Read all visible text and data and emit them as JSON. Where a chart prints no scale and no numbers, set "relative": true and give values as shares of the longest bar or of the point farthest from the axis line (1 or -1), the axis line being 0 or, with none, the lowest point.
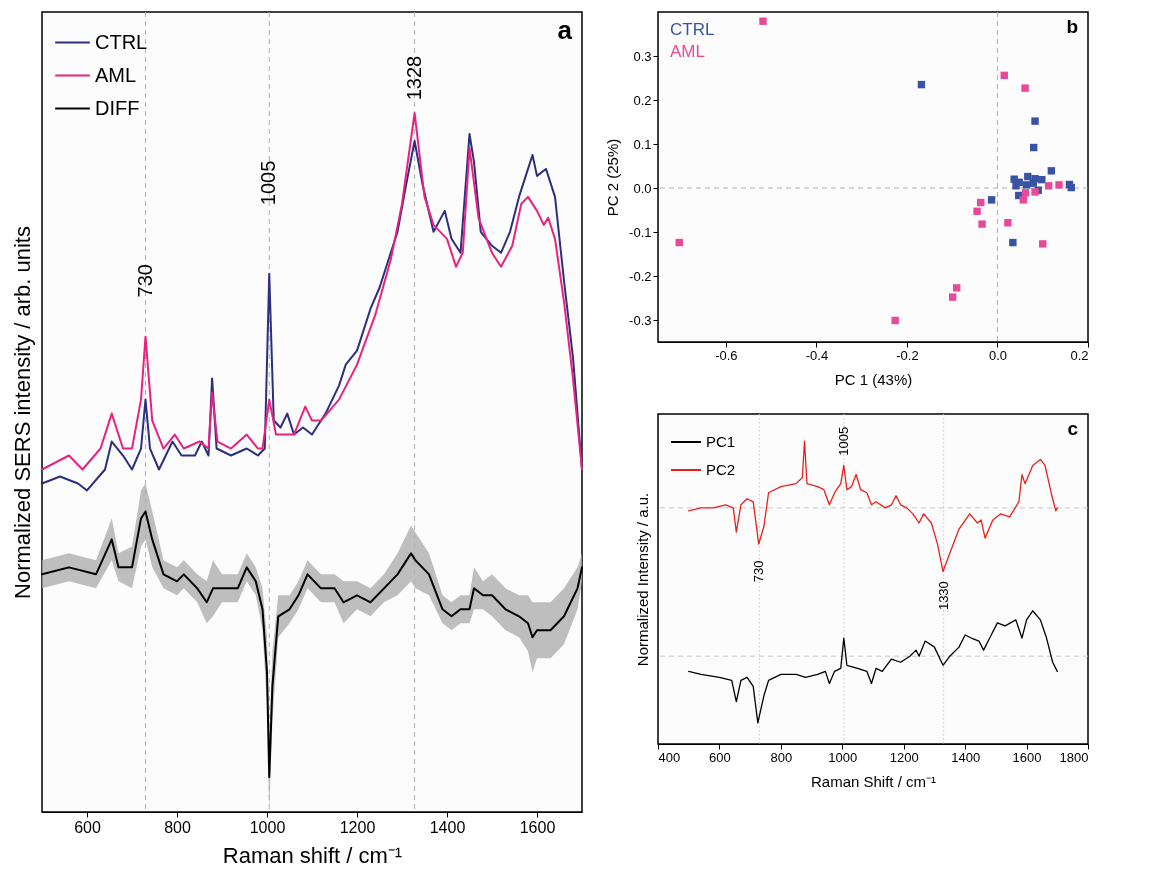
{
  "chart_data": [
    {
      "type": "line",
      "relative": true,
      "xlabel": "Raman shift / cm⁻¹",
      "ylabel": "Normalized SERS intensity / arb. units",
      "xlim": [
        500,
        1700
      ],
      "xticks": [
        600,
        800,
        1000,
        1200,
        1400,
        1600
      ],
      "legend": "top left",
      "series": [
        {
          "name": "CTRL",
          "color": "#2b2f7e",
          "x": [
            500,
            540,
            580,
            600,
            640,
            655,
            680,
            700,
            720,
            730,
            740,
            760,
            790,
            810,
            840,
            855,
            870,
            878,
            888,
            920,
            955,
            980,
            995,
            1005,
            1015,
            1030,
            1045,
            1060,
            1080,
            1100,
            1130,
            1160,
            1175,
            1200,
            1230,
            1250,
            1275,
            1290,
            1310,
            1328,
            1345,
            1370,
            1395,
            1410,
            1430,
            1450,
            1460,
            1475,
            1500,
            1520,
            1540,
            1560,
            1580,
            1590,
            1600,
            1620,
            1640,
            1660,
            1680,
            1700
          ],
          "values": [
            0.47,
            0.48,
            0.47,
            0.46,
            0.49,
            0.53,
            0.51,
            0.49,
            0.52,
            0.59,
            0.52,
            0.49,
            0.53,
            0.51,
            0.51,
            0.53,
            0.51,
            0.62,
            0.52,
            0.51,
            0.52,
            0.51,
            0.52,
            0.77,
            0.56,
            0.55,
            0.57,
            0.54,
            0.55,
            0.54,
            0.57,
            0.61,
            0.64,
            0.66,
            0.72,
            0.75,
            0.8,
            0.83,
            0.9,
            0.96,
            0.9,
            0.83,
            0.86,
            0.82,
            0.8,
            0.97,
            0.93,
            0.83,
            0.81,
            0.8,
            0.83,
            0.88,
            0.92,
            0.94,
            0.91,
            0.92,
            0.88,
            0.76,
            0.65,
            0.49
          ]
        },
        {
          "name": "AML",
          "color": "#e8237f",
          "x": [
            500,
            560,
            590,
            630,
            655,
            680,
            700,
            720,
            730,
            745,
            770,
            795,
            815,
            850,
            870,
            878,
            890,
            920,
            955,
            980,
            990,
            1005,
            1020,
            1045,
            1060,
            1085,
            1100,
            1120,
            1160,
            1200,
            1240,
            1275,
            1300,
            1328,
            1350,
            1370,
            1400,
            1420,
            1435,
            1450,
            1470,
            1500,
            1520,
            1545,
            1565,
            1580,
            1600,
            1615,
            1625,
            1640,
            1660,
            1680,
            1700
          ],
          "values": [
            0.49,
            0.51,
            0.49,
            0.52,
            0.57,
            0.52,
            0.52,
            0.59,
            0.68,
            0.56,
            0.52,
            0.54,
            0.52,
            0.53,
            0.52,
            0.6,
            0.53,
            0.52,
            0.54,
            0.52,
            0.52,
            0.59,
            0.54,
            0.54,
            0.54,
            0.58,
            0.56,
            0.56,
            0.59,
            0.64,
            0.71,
            0.79,
            0.87,
            1,
            0.88,
            0.84,
            0.82,
            0.78,
            0.8,
            0.95,
            0.85,
            0.8,
            0.78,
            0.81,
            0.87,
            0.88,
            0.86,
            0.84,
            0.85,
            0.82,
            0.73,
            0.62,
            0.49
          ]
        },
        {
          "name": "DIFF",
          "color": "#000000",
          "x": [
            500,
            560,
            620,
            655,
            670,
            700,
            720,
            730,
            745,
            770,
            800,
            815,
            845,
            866,
            880,
            900,
            935,
            955,
            975,
            990,
            1000,
            1005,
            1012,
            1025,
            1050,
            1070,
            1090,
            1120,
            1150,
            1170,
            1200,
            1230,
            1260,
            1290,
            1320,
            1330,
            1360,
            1390,
            1410,
            1430,
            1450,
            1460,
            1480,
            1500,
            1530,
            1560,
            1580,
            1590,
            1600,
            1630,
            1660,
            1690,
            1700
          ],
          "values": [
            0.34,
            0.35,
            0.34,
            0.39,
            0.35,
            0.35,
            0.42,
            0.43,
            0.39,
            0.34,
            0.33,
            0.34,
            0.32,
            0.3,
            0.32,
            0.32,
            0.32,
            0.35,
            0.33,
            0.29,
            0.2,
            0.05,
            0.18,
            0.28,
            0.29,
            0.31,
            0.34,
            0.32,
            0.32,
            0.3,
            0.31,
            0.3,
            0.32,
            0.34,
            0.37,
            0.36,
            0.34,
            0.29,
            0.28,
            0.29,
            0.29,
            0.32,
            0.31,
            0.31,
            0.29,
            0.28,
            0.27,
            0.25,
            0.26,
            0.26,
            0.28,
            0.32,
            0.35
          ],
          "lower": [
            0.32,
            0.33,
            0.32,
            0.36,
            0.33,
            0.32,
            0.38,
            0.39,
            0.35,
            0.32,
            0.31,
            0.32,
            0.3,
            0.27,
            0.28,
            0.3,
            0.3,
            0.33,
            0.31,
            0.26,
            0.15,
            0.0,
            0.13,
            0.25,
            0.27,
            0.29,
            0.32,
            0.3,
            0.3,
            0.27,
            0.29,
            0.28,
            0.3,
            0.31,
            0.33,
            0.32,
            0.31,
            0.27,
            0.26,
            0.27,
            0.27,
            0.29,
            0.29,
            0.28,
            0.26,
            0.25,
            0.23,
            0.2,
            0.22,
            0.22,
            0.24,
            0.29,
            0.33
          ],
          "upper": [
            0.36,
            0.37,
            0.36,
            0.42,
            0.37,
            0.38,
            0.46,
            0.47,
            0.43,
            0.36,
            0.35,
            0.36,
            0.34,
            0.33,
            0.36,
            0.34,
            0.34,
            0.37,
            0.35,
            0.32,
            0.25,
            0.11,
            0.23,
            0.31,
            0.31,
            0.33,
            0.36,
            0.34,
            0.34,
            0.33,
            0.33,
            0.32,
            0.34,
            0.37,
            0.41,
            0.4,
            0.37,
            0.31,
            0.3,
            0.31,
            0.31,
            0.35,
            0.33,
            0.34,
            0.32,
            0.31,
            0.31,
            0.3,
            0.3,
            0.3,
            0.32,
            0.35,
            0.37
          ]
        }
      ],
      "ref_lines": [
        {
          "axis": "x",
          "value": 730,
          "color": "#b0b0b0",
          "line_style": "dashed"
        },
        {
          "axis": "x",
          "value": 1005,
          "color": "#b0b0b0",
          "line_style": "dashed"
        },
        {
          "axis": "x",
          "value": 1328,
          "color": "#b0b0b0",
          "line_style": "dashed"
        }
      ],
      "annotations": [
        {
          "text": "730",
          "x": 730,
          "y": 0.76
        },
        {
          "text": "1005",
          "x": 1005,
          "y": 0.9
        },
        {
          "text": "1328",
          "x": 1328,
          "y": 1.05
        },
        "a"
      ]
    },
    {
      "type": "scatter",
      "xlabel": "PC 1 (43%)",
      "ylabel": "PC 2 (25%)",
      "xlim": [
        -0.75,
        0.2
      ],
      "xticks": [
        -0.6,
        -0.4,
        -0.2,
        {
          "value": 0,
          "label": "0.0"
        },
        0.2
      ],
      "ylim": [
        -0.35,
        0.4
      ],
      "yticks": [
        -0.3,
        -0.2,
        -0.1,
        {
          "value": 0,
          "label": "0.0"
        },
        0.1,
        0.2,
        0.3
      ],
      "legend": "top left",
      "marker": "square",
      "series": [
        {
          "name": "CTRL",
          "color": "#3953a4",
          "x": [
            -0.168,
            0.083,
            0.08,
            0.119,
            0.037,
            0.067,
            0.048,
            0.064,
            0.083,
            0.098,
            0.079,
            0.047,
            0.09,
            -0.013,
            0.034,
            0.159,
            0.163,
            0.041
          ],
          "values": [
            0.235,
            0.152,
            0.092,
            0.039,
            0.02,
            0.026,
            0.013,
            0.007,
            0.021,
            0.019,
            0.011,
            -0.017,
            -0.005,
            -0.027,
            -0.124,
            0.008,
            0.001,
            0.005
          ]
        },
        {
          "name": "AML",
          "color": "#e84a9a",
          "x": [
            -0.518,
            -0.703,
            0.015,
            0.061,
            -0.037,
            -0.045,
            -0.034,
            0.023,
            0.057,
            0.062,
            0.083,
            0.113,
            0.136,
            0.1,
            -0.09,
            -0.099,
            -0.226
          ],
          "values": [
            0.379,
            -0.124,
            0.256,
            0.227,
            -0.033,
            -0.053,
            -0.082,
            -0.079,
            -0.027,
            -0.011,
            -0.009,
            0.005,
            0.007,
            -0.127,
            -0.227,
            -0.248,
            -0.301
          ]
        }
      ],
      "ref_lines": [
        {
          "axis": "x",
          "value": 0,
          "color": "#b0b0b0",
          "line_style": "dashed"
        },
        {
          "axis": "y",
          "value": 0,
          "color": "#b0b0b0",
          "line_style": "dashed"
        }
      ],
      "annotations": [
        "b"
      ]
    },
    {
      "type": "line",
      "relative": true,
      "xlabel": "Raman Shift / cm⁻¹",
      "ylabel": "Normalized Intensity / a.u.",
      "xlim": [
        400,
        1800
      ],
      "xticks": [
        400,
        600,
        800,
        1000,
        1200,
        1400,
        1600,
        1800
      ],
      "legend": "top left",
      "series": [
        {
          "name": "PC1",
          "color": "#000000",
          "x": [
            500,
            540,
            600,
            640,
            655,
            670,
            690,
            710,
            725,
            745,
            760,
            800,
            850,
            880,
            920,
            945,
            958,
            975,
            995,
            1005,
            1015,
            1050,
            1080,
            1095,
            1110,
            1130,
            1160,
            1190,
            1220,
            1240,
            1250,
            1270,
            1300,
            1328,
            1350,
            1380,
            1400,
            1420,
            1445,
            1460,
            1480,
            1505,
            1530,
            1565,
            1585,
            1600,
            1620,
            1645,
            1665,
            1685,
            1700
          ],
          "values": [
            0.24,
            0.23,
            0.22,
            0.21,
            0.14,
            0.21,
            0.22,
            0.19,
            0.07,
            0.16,
            0.21,
            0.23,
            0.23,
            0.22,
            0.23,
            0.24,
            0.2,
            0.24,
            0.25,
            0.35,
            0.26,
            0.25,
            0.24,
            0.2,
            0.25,
            0.24,
            0.28,
            0.27,
            0.29,
            0.31,
            0.29,
            0.34,
            0.32,
            0.26,
            0.29,
            0.32,
            0.36,
            0.35,
            0.34,
            0.31,
            0.35,
            0.4,
            0.39,
            0.41,
            0.35,
            0.41,
            0.44,
            0.41,
            0.35,
            0.27,
            0.24
          ]
        },
        {
          "name": "PC2",
          "color": "#e8201c",
          "x": [
            500,
            540,
            580,
            620,
            645,
            655,
            670,
            690,
            710,
            728,
            745,
            760,
            800,
            850,
            870,
            877,
            885,
            920,
            940,
            958,
            975,
            995,
            1005,
            1015,
            1030,
            1045,
            1060,
            1080,
            1095,
            1110,
            1140,
            1160,
            1175,
            1190,
            1210,
            1230,
            1250,
            1265,
            1290,
            1310,
            1328,
            1350,
            1380,
            1415,
            1440,
            1452,
            1465,
            1490,
            1515,
            1545,
            1575,
            1585,
            1595,
            1620,
            1645,
            1660,
            1680,
            1695,
            1700
          ],
          "values": [
            0.77,
            0.78,
            0.78,
            0.79,
            0.78,
            0.7,
            0.79,
            0.81,
            0.8,
            0.66,
            0.72,
            0.83,
            0.85,
            0.86,
            0.88,
            1,
            0.86,
            0.85,
            0.84,
            0.79,
            0.83,
            0.86,
            0.92,
            0.84,
            0.85,
            0.89,
            0.84,
            0.83,
            0.79,
            0.8,
            0.78,
            0.79,
            0.82,
            0.79,
            0.78,
            0.76,
            0.73,
            0.76,
            0.73,
            0.66,
            0.57,
            0.63,
            0.71,
            0.76,
            0.73,
            0.74,
            0.68,
            0.74,
            0.76,
            0.75,
            0.8,
            0.89,
            0.86,
            0.92,
            0.94,
            0.92,
            0.83,
            0.77,
            0.78
          ]
        }
      ],
      "ref_lines": [
        {
          "axis": "y",
          "value": 0.78,
          "color": "#c8c8c8",
          "line_style": "dashed"
        },
        {
          "axis": "y",
          "value": 0.29,
          "color": "#c8c8c8",
          "line_style": "dashed"
        },
        {
          "axis": "x",
          "value": 730,
          "color": "#c8c8c8",
          "line_style": "dotted"
        },
        {
          "axis": "x",
          "value": 1005,
          "color": "#c8c8c8",
          "line_style": "dotted"
        },
        {
          "axis": "x",
          "value": 1330,
          "color": "#c8c8c8",
          "line_style": "dotted"
        }
      ],
      "annotations": [
        {
          "text": "730",
          "x": 730,
          "y": 0.57
        },
        {
          "text": "1005",
          "x": 1005,
          "y": 1.0
        },
        {
          "text": "1330",
          "x": 1330,
          "y": 0.49
        },
        "c"
      ]
    }
  ]
}
